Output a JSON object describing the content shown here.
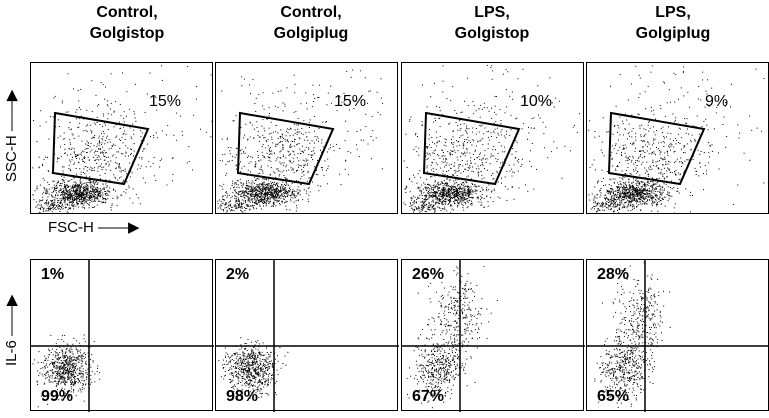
{
  "chart_data": {
    "type": "scatter",
    "columns": [
      {
        "title_line1": "Control,",
        "title_line2": "Golgistop"
      },
      {
        "title_line1": "Control,",
        "title_line2": "Golgiplug"
      },
      {
        "title_line1": "LPS,",
        "title_line2": "Golgistop"
      },
      {
        "title_line1": "LPS,",
        "title_line2": "Golgiplug"
      }
    ],
    "scatter_row": {
      "xlabel": "FSC-H",
      "ylabel": "SSC-H",
      "gate_percent": [
        "15%",
        "15%",
        "10%",
        "9%"
      ]
    },
    "quadrant_row": {
      "ylabel": "IL-6",
      "upper_left_percent": [
        "1%",
        "2%",
        "26%",
        "28%"
      ],
      "lower_left_percent": [
        "99%",
        "98%",
        "67%",
        "65%"
      ]
    }
  }
}
